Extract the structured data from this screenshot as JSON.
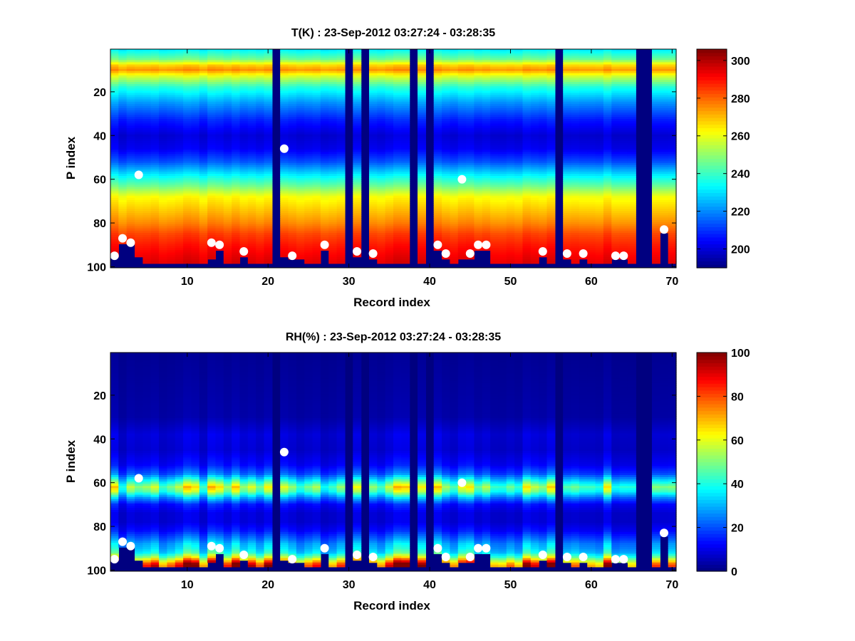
{
  "chart_data": [
    {
      "type": "heatmap",
      "title": "T(K) : 23-Sep-2012 03:27:24 - 03:28:35",
      "xlabel": "Record index",
      "ylabel": "P index",
      "xlim": [
        0.5,
        70.5
      ],
      "ylim": [
        0.5,
        100.5
      ],
      "y_reversed": true,
      "xticks": [
        10,
        20,
        30,
        40,
        50,
        60,
        70
      ],
      "yticks": [
        20,
        40,
        60,
        80,
        100
      ],
      "colorbar": {
        "min": 190,
        "max": 306,
        "ticks": [
          200,
          220,
          240,
          260,
          280,
          300
        ],
        "colormap": "jet"
      },
      "missing_records": [
        21,
        30,
        32,
        38,
        40,
        56,
        66,
        67
      ],
      "record_bottom_level": [
        95,
        89,
        89,
        95,
        98,
        98,
        98,
        98,
        98,
        98,
        98,
        98,
        96,
        92,
        98,
        98,
        95,
        98,
        98,
        98,
        0,
        95,
        96,
        96,
        98,
        98,
        92,
        98,
        98,
        0,
        95,
        0,
        96,
        98,
        98,
        98,
        98,
        0,
        98,
        0,
        92,
        96,
        98,
        96,
        96,
        92,
        92,
        98,
        98,
        98,
        98,
        98,
        98,
        95,
        98,
        0,
        96,
        98,
        96,
        98,
        98,
        98,
        96,
        96,
        98,
        0,
        0,
        98,
        84,
        98
      ],
      "profile": {
        "levels": [
          1,
          5,
          8,
          10,
          13,
          18,
          25,
          33,
          40,
          46,
          52,
          58,
          63,
          68,
          75,
          80,
          85,
          90,
          95,
          98
        ],
        "values": [
          233,
          246,
          268,
          275,
          258,
          238,
          222,
          208,
          200,
          203,
          214,
          232,
          246,
          262,
          270,
          276,
          284,
          289,
          293,
          295
        ]
      },
      "markers": [
        {
          "x": 1,
          "y": 95
        },
        {
          "x": 2,
          "y": 87
        },
        {
          "x": 3,
          "y": 89
        },
        {
          "x": 4,
          "y": 58
        },
        {
          "x": 13,
          "y": 89
        },
        {
          "x": 14,
          "y": 90
        },
        {
          "x": 17,
          "y": 93
        },
        {
          "x": 22,
          "y": 46
        },
        {
          "x": 23,
          "y": 95
        },
        {
          "x": 27,
          "y": 90
        },
        {
          "x": 31,
          "y": 93
        },
        {
          "x": 33,
          "y": 94
        },
        {
          "x": 41,
          "y": 90
        },
        {
          "x": 42,
          "y": 94
        },
        {
          "x": 44,
          "y": 60
        },
        {
          "x": 45,
          "y": 94
        },
        {
          "x": 46,
          "y": 90
        },
        {
          "x": 47,
          "y": 90
        },
        {
          "x": 54,
          "y": 93
        },
        {
          "x": 57,
          "y": 94
        },
        {
          "x": 59,
          "y": 94
        },
        {
          "x": 63,
          "y": 95
        },
        {
          "x": 64,
          "y": 95
        },
        {
          "x": 69,
          "y": 83
        }
      ]
    },
    {
      "type": "heatmap",
      "title": "RH(%) : 23-Sep-2012 03:27:24 - 03:28:35",
      "xlabel": "Record index",
      "ylabel": "P index",
      "xlim": [
        0.5,
        70.5
      ],
      "ylim": [
        0.5,
        100.5
      ],
      "y_reversed": true,
      "xticks": [
        10,
        20,
        30,
        40,
        50,
        60,
        70
      ],
      "yticks": [
        20,
        40,
        60,
        80,
        100
      ],
      "colorbar": {
        "min": 0,
        "max": 100,
        "ticks": [
          0,
          20,
          40,
          60,
          80,
          100
        ],
        "colormap": "jet"
      },
      "missing_records": [
        21,
        30,
        32,
        38,
        40,
        56,
        66,
        67
      ],
      "record_bottom_level": [
        95,
        89,
        89,
        95,
        98,
        98,
        98,
        98,
        98,
        98,
        98,
        98,
        96,
        92,
        98,
        98,
        95,
        98,
        98,
        98,
        0,
        95,
        96,
        96,
        98,
        98,
        92,
        98,
        98,
        0,
        95,
        0,
        96,
        98,
        98,
        98,
        98,
        0,
        98,
        0,
        92,
        96,
        98,
        96,
        96,
        92,
        92,
        98,
        98,
        98,
        98,
        98,
        98,
        95,
        98,
        0,
        96,
        98,
        96,
        98,
        98,
        98,
        96,
        96,
        98,
        0,
        0,
        98,
        84,
        98
      ],
      "profile": {
        "levels": [
          1,
          30,
          38,
          45,
          52,
          56,
          59,
          62,
          64,
          67,
          70,
          74,
          78,
          82,
          86,
          88,
          90,
          92,
          93,
          94,
          95,
          96,
          97,
          98
        ],
        "values": [
          2,
          4,
          9,
          8,
          13,
          22,
          38,
          55,
          48,
          28,
          14,
          9,
          9,
          14,
          24,
          30,
          33,
          38,
          45,
          52,
          62,
          72,
          82,
          88
        ]
      },
      "markers": [
        {
          "x": 1,
          "y": 95
        },
        {
          "x": 2,
          "y": 87
        },
        {
          "x": 3,
          "y": 89
        },
        {
          "x": 4,
          "y": 58
        },
        {
          "x": 13,
          "y": 89
        },
        {
          "x": 14,
          "y": 90
        },
        {
          "x": 17,
          "y": 93
        },
        {
          "x": 22,
          "y": 46
        },
        {
          "x": 23,
          "y": 95
        },
        {
          "x": 27,
          "y": 90
        },
        {
          "x": 31,
          "y": 93
        },
        {
          "x": 33,
          "y": 94
        },
        {
          "x": 41,
          "y": 90
        },
        {
          "x": 42,
          "y": 94
        },
        {
          "x": 44,
          "y": 60
        },
        {
          "x": 45,
          "y": 94
        },
        {
          "x": 46,
          "y": 90
        },
        {
          "x": 47,
          "y": 90
        },
        {
          "x": 54,
          "y": 93
        },
        {
          "x": 57,
          "y": 94
        },
        {
          "x": 59,
          "y": 94
        },
        {
          "x": 63,
          "y": 95
        },
        {
          "x": 64,
          "y": 95
        },
        {
          "x": 69,
          "y": 83
        }
      ]
    }
  ]
}
